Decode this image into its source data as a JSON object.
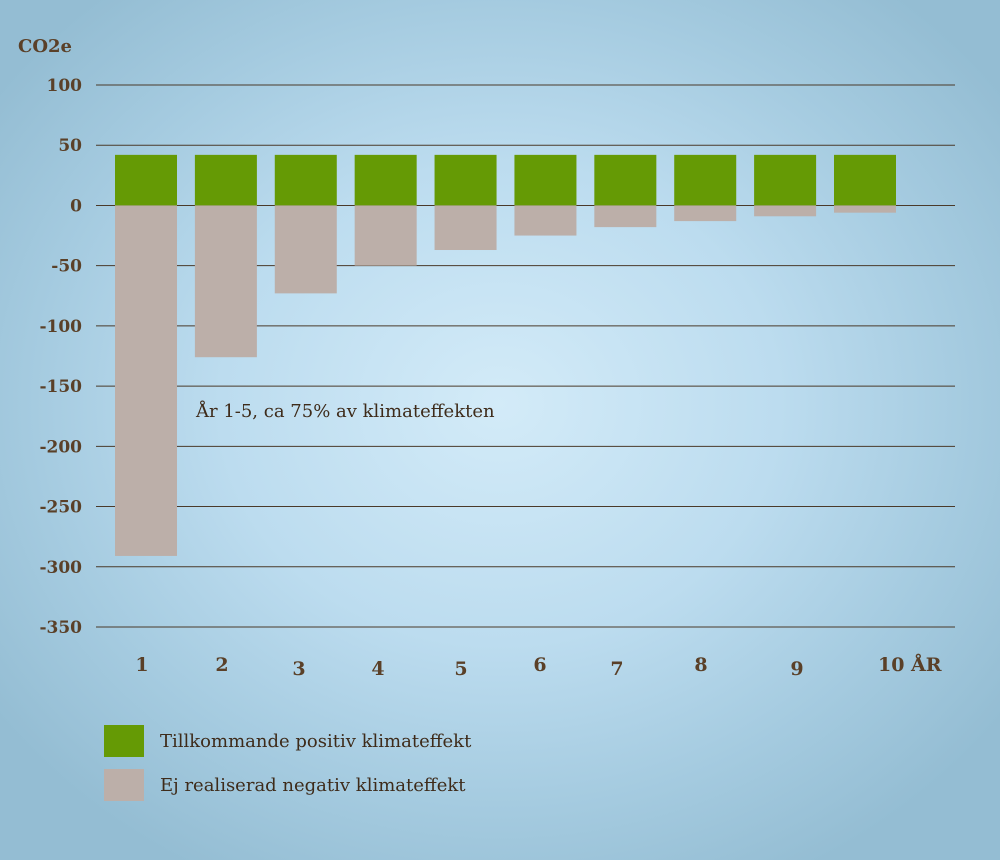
{
  "chart_data": {
    "type": "bar",
    "stacked": "diverging",
    "ylabel": "CO2e",
    "xlabel_suffix": "ÅR",
    "categories": [
      "1",
      "2",
      "3",
      "4",
      "5",
      "6",
      "7",
      "8",
      "9",
      "10"
    ],
    "series": [
      {
        "name": "Tillkommande positiv klimateffekt",
        "color": "#659a05",
        "values": [
          42,
          42,
          42,
          42,
          42,
          42,
          42,
          42,
          42,
          42
        ]
      },
      {
        "name": "Ej realiserad negativ klimateffekt",
        "color": "#bcafa9",
        "values": [
          -291,
          -126,
          -73,
          -50,
          -37,
          -25,
          -18,
          -13,
          -9,
          -6
        ]
      }
    ],
    "ylim": [
      -350,
      100
    ],
    "yticks": [
      100,
      50,
      0,
      -50,
      -100,
      -150,
      -200,
      -250,
      -300,
      -350
    ],
    "grid": true,
    "gridline_color": "#4a3a2a",
    "annotation": "År 1-5, ca 75% av klimateffekten",
    "legend_position": "bottom-left"
  }
}
